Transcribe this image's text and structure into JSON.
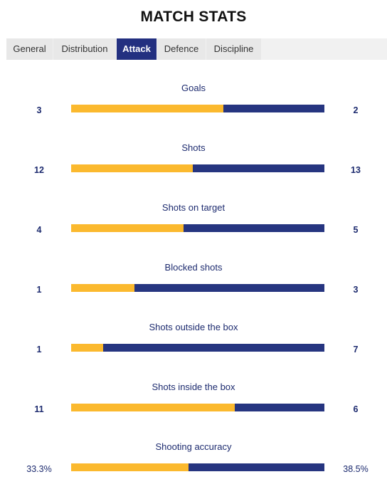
{
  "title": "MATCH STATS",
  "tabs": [
    {
      "label": "General"
    },
    {
      "label": "Distribution"
    },
    {
      "label": "Attack"
    },
    {
      "label": "Defence"
    },
    {
      "label": "Discipline"
    }
  ],
  "active_tab": 2,
  "colors": {
    "home": "#fbb92e",
    "away": "#263580",
    "accent": "#233080"
  },
  "stats": [
    {
      "label": "Goals",
      "home": "3",
      "away": "2",
      "home_share": 0.6
    },
    {
      "label": "Shots",
      "home": "12",
      "away": "13",
      "home_share": 0.48
    },
    {
      "label": "Shots on target",
      "home": "4",
      "away": "5",
      "home_share": 0.444
    },
    {
      "label": "Blocked shots",
      "home": "1",
      "away": "3",
      "home_share": 0.25
    },
    {
      "label": "Shots outside the box",
      "home": "1",
      "away": "7",
      "home_share": 0.125
    },
    {
      "label": "Shots inside the box",
      "home": "11",
      "away": "6",
      "home_share": 0.647
    },
    {
      "label": "Shooting accuracy",
      "home": "33.3%",
      "away": "38.5%",
      "home_share": 0.464
    }
  ]
}
